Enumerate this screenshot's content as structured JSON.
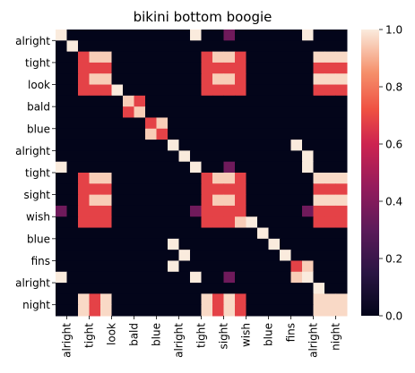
{
  "chart_data": {
    "type": "heatmap",
    "title": "bikini bottom boogie",
    "ytick_labels": [
      "alright",
      "tight",
      "look",
      "bald",
      "blue",
      "alright",
      "tight",
      "sight",
      "wish",
      "blue",
      "fins",
      "alright",
      "night"
    ],
    "xtick_labels": [
      "alright",
      "tight",
      "look",
      "bald",
      "blue",
      "alright",
      "tight",
      "sight",
      "wish",
      "blue",
      "fins",
      "alright",
      "night"
    ],
    "colorbar": {
      "ticks": [
        "0.0",
        "0.2",
        "0.4",
        "0.6",
        "0.8",
        "1.0"
      ],
      "range": [
        0,
        1
      ]
    },
    "colormap": "rocket",
    "matrix": [
      [
        1,
        0,
        0,
        0,
        0,
        0,
        0,
        0,
        0,
        0,
        0,
        1,
        0,
        0,
        0,
        0,
        0,
        0,
        0,
        0,
        0,
        0,
        0,
        0,
        0,
        0,
        0,
        0,
        0,
        0,
        0,
        0,
        0,
        0,
        0,
        0,
        0,
        0,
        0,
        0,
        0,
        0,
        0,
        0,
        0,
        0,
        0,
        0,
        0,
        0,
        0,
        0,
        0,
        0,
        0,
        0,
        0,
        0,
        0,
        0,
        0,
        0,
        0,
        0,
        0,
        0
      ],
      [
        0,
        0,
        0,
        0,
        0,
        0,
        0,
        0,
        0,
        0,
        0,
        0,
        0,
        0,
        0,
        0,
        0,
        0,
        0,
        0,
        0,
        0,
        0,
        0,
        0,
        0,
        0,
        0,
        0,
        0,
        0,
        0,
        0,
        0,
        0,
        0,
        0,
        0,
        0,
        0,
        0,
        0,
        0,
        0,
        0,
        0,
        0,
        0,
        0,
        0,
        0,
        0,
        0,
        0,
        0,
        0,
        0,
        0,
        0,
        0,
        0,
        0,
        0,
        0,
        0,
        0
      ]
    ],
    "rows": [
      [
        0.9,
        0,
        0,
        0,
        0,
        0,
        0,
        0,
        0,
        0,
        0,
        0,
        0,
        0,
        0,
        0.9,
        0,
        0,
        0,
        0,
        0,
        0,
        0.35,
        0,
        0,
        0,
        0,
        0,
        0,
        0,
        0,
        0.9,
        0,
        0,
        0
      ],
      [
        0,
        0,
        0.68,
        0.9,
        0,
        0,
        0,
        0,
        0,
        0,
        0,
        0,
        0,
        0,
        0,
        0,
        0,
        0.68,
        0.9,
        0.68,
        0,
        0,
        0,
        0,
        0,
        0,
        0,
        0,
        0,
        0,
        0,
        0,
        0.95,
        0.95,
        0.95
      ],
      [
        0,
        0,
        0.68,
        0.68,
        0.68,
        0,
        0,
        0,
        0,
        0,
        0,
        0,
        0,
        0,
        0,
        0,
        0,
        0.68,
        0.68,
        0.68,
        0.68,
        0,
        0,
        0,
        0,
        0,
        0,
        0,
        0,
        0,
        0,
        0,
        0.68,
        0.68,
        0.68
      ],
      [
        0,
        0,
        0.9,
        0.68,
        0.9,
        0,
        0,
        0,
        0,
        0,
        0,
        0,
        0,
        0,
        0,
        0,
        0,
        0.9,
        0.68,
        0.9,
        0.68,
        0,
        0,
        0,
        0,
        0,
        0,
        0,
        0,
        0,
        0,
        0,
        0.95,
        0.95,
        0.95
      ]
    ],
    "cells": [
      {
        "r": 0,
        "c": 0,
        "v": 1.0
      },
      {
        "r": 0,
        "c": 5,
        "v": 1.0
      },
      {
        "r": 0,
        "c": 7,
        "v": 0.35
      },
      {
        "r": 0,
        "c": 11,
        "v": 1.0
      },
      {
        "r": 1,
        "c": 1,
        "v": 1.0
      },
      {
        "r": 2,
        "c": 2,
        "v": 1.0
      },
      {
        "r": 3,
        "c": 3,
        "v": 1.0
      },
      {
        "r": 4,
        "c": 4,
        "v": 1.0
      },
      {
        "r": 5,
        "c": 0,
        "v": 1.0
      },
      {
        "r": 5,
        "c": 5,
        "v": 1.0
      },
      {
        "r": 5,
        "c": 7,
        "v": 0.35
      },
      {
        "r": 5,
        "c": 11,
        "v": 1.0
      },
      {
        "r": 6,
        "c": 1,
        "v": 1.0
      },
      {
        "r": 7,
        "c": 1,
        "v": 1.0
      },
      {
        "r": 8,
        "c": 0,
        "v": 0.35
      },
      {
        "r": 8,
        "c": 5,
        "v": 0.35
      },
      {
        "r": 8,
        "c": 8,
        "v": 1.0
      },
      {
        "r": 8,
        "c": 11,
        "v": 0.35
      },
      {
        "r": 9,
        "c": 9,
        "v": 1.0
      },
      {
        "r": 10,
        "c": 10,
        "v": 1.0
      },
      {
        "r": 11,
        "c": 0,
        "v": 1.0
      },
      {
        "r": 11,
        "c": 5,
        "v": 1.0
      },
      {
        "r": 11,
        "c": 7,
        "v": 0.35
      },
      {
        "r": 11,
        "c": 11,
        "v": 1.0
      },
      {
        "r": 12,
        "c": 12,
        "v": 1.0
      }
    ]
  }
}
